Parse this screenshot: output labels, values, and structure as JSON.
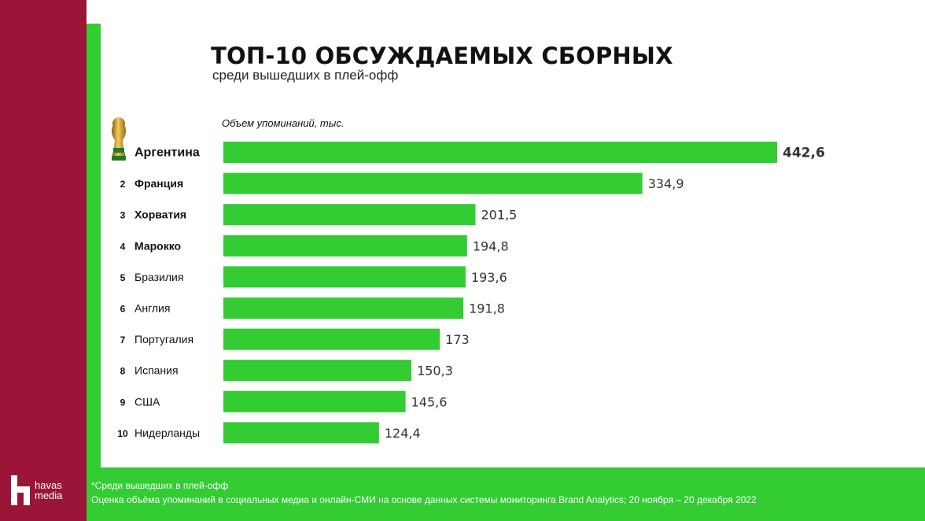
{
  "title": "ТОП-10 ОБСУЖДАЕМЫХ СБОРНЫХ",
  "subtitle": "среди вышедших в плей-офф",
  "axis_note": "Объем упоминаний, тыс.",
  "footnote": {
    "line1": "*Среди вышедших в плей-офф",
    "line2": "Оценка объёма упоминаний в социальных медиа и онлайн-СМИ на основе данных системы мониторинга Brand Analytics;  20 ноября – 20 декабря 2022"
  },
  "logo": {
    "line1": "havas",
    "line2": "media"
  },
  "icons": {
    "trophy": "world-cup-trophy-icon",
    "logo": "havas-logo-icon"
  },
  "colors": {
    "bar": "#33cc33",
    "brand": "#9b1538",
    "frame": "#33cc33"
  },
  "chart_data": {
    "type": "bar",
    "orientation": "horizontal",
    "title": "ТОП-10 ОБСУЖДАЕМЫХ СБОРНЫХ",
    "subtitle": "среди вышедших в плей-офф",
    "xlabel": "Объем упоминаний, тыс.",
    "ranks": [
      "",
      "2",
      "3",
      "4",
      "5",
      "6",
      "7",
      "8",
      "9",
      "10"
    ],
    "categories": [
      "Аргентина",
      "Франция",
      "Хорватия",
      "Марокко",
      "Бразилия",
      "Англия",
      "Португалия",
      "Испания",
      "США",
      "Нидерланды"
    ],
    "values": [
      442.6,
      334.9,
      201.5,
      194.8,
      193.6,
      191.8,
      173,
      150.3,
      145.6,
      124.4
    ],
    "value_labels": [
      "442,6",
      "334,9",
      "201,5",
      "194,8",
      "193,6",
      "191,8",
      "173",
      "150,3",
      "145,6",
      "124,4"
    ],
    "bold_top": 4,
    "grid": false,
    "legend": "none"
  }
}
